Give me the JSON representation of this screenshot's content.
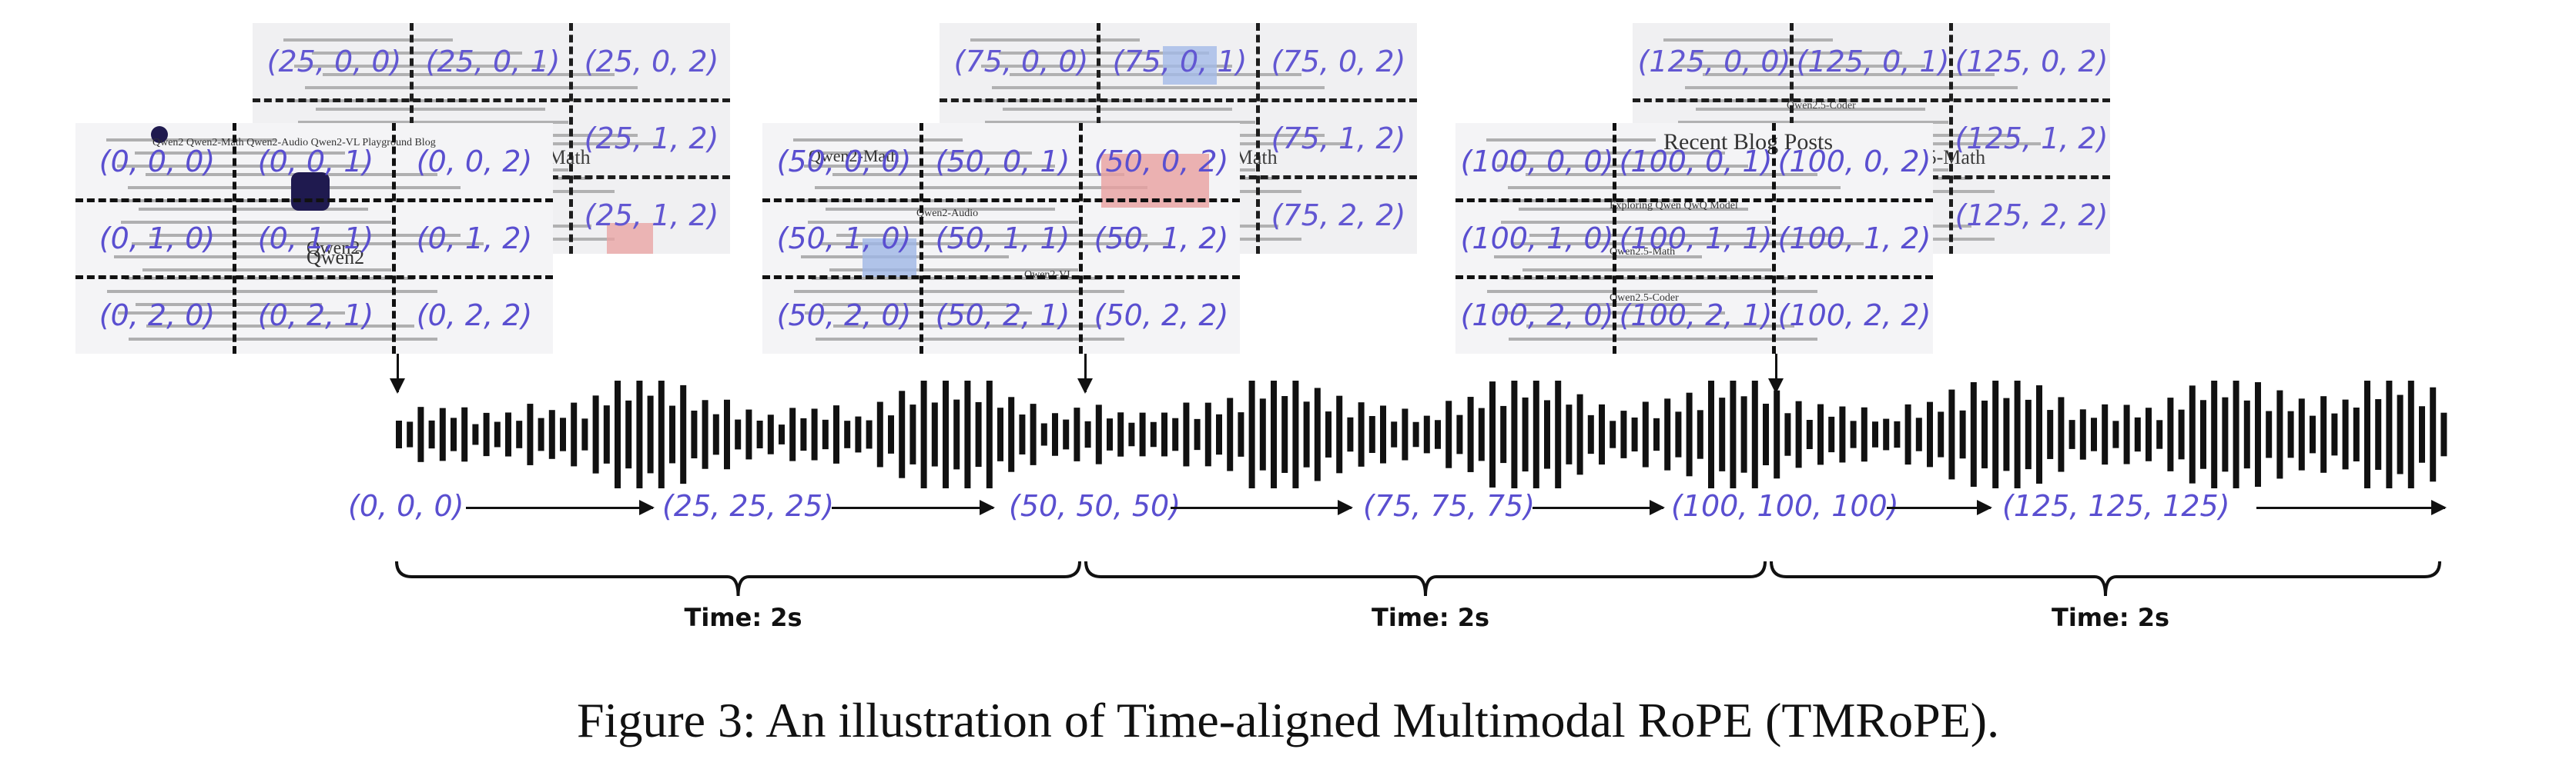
{
  "caption": "Figure 3: An illustration of Time-aligned Multimodal RoPE (TMRoPE).",
  "time_label": "Time: 2s",
  "audio_token_positions": [
    "(0, 0, 0)",
    "(25, 25, 25)",
    "(50, 50, 50)",
    "(75, 75, 75)",
    "(100, 100, 100)",
    "(125, 125, 125)"
  ],
  "video_groups": [
    {
      "front": {
        "cells": [
          "(0, 0, 0)",
          "(0, 0, 1)",
          "(0, 0, 2)",
          "(0, 1, 0)",
          "(0, 1, 1)",
          "(0, 1, 2)",
          "(0, 2, 0)",
          "(0, 2, 1)",
          "(0, 2, 2)"
        ],
        "snippets": [
          "Qwen2",
          "Qwen2   Qwen2-Math   Qwen2-Audio   Qwen2-VL   Playground   Blog",
          "Qwen2"
        ]
      },
      "back": {
        "cells": [
          "(25, 0, 0)",
          "(25, 0, 1)",
          "(25, 0, 2)",
          "",
          "",
          "(25, 1, 2)",
          "",
          "",
          "(25, 1, 2)"
        ],
        "snippets": [
          "Qwen2-Math"
        ]
      }
    },
    {
      "front": {
        "cells": [
          "(50, 0, 0)",
          "(50, 0, 1)",
          "(50, 0, 2)",
          "(50, 1, 0)",
          "(50, 1, 1)",
          "(50, 1, 2)",
          "(50, 2, 0)",
          "(50, 2, 1)",
          "(50, 2, 2)"
        ],
        "snippets": [
          "Qwen2-Math",
          "Qwen2-Audio",
          "Qwen2-VL"
        ]
      },
      "back": {
        "cells": [
          "(75, 0, 0)",
          "(75, 0, 1)",
          "(75, 0, 2)",
          "",
          "",
          "(75, 1, 2)",
          "",
          "",
          "(75, 2, 2)"
        ],
        "snippets": [
          "Qwen2-Math"
        ]
      }
    },
    {
      "front": {
        "cells": [
          "(100, 0, 0)",
          "(100, 0, 1)",
          "(100, 0, 2)",
          "(100, 1, 0)",
          "(100, 1, 1)",
          "(100, 1, 2)",
          "(100, 2, 0)",
          "(100, 2, 1)",
          "(100, 2, 2)"
        ],
        "snippets": [
          "Recent Blog Posts",
          "Exploring Qwen QwQ Model",
          "Qwen2.5-Math",
          "Qwen2.5-Coder"
        ]
      },
      "back": {
        "cells": [
          "(125, 0, 0)",
          "(125, 0, 1)",
          "(125, 0, 2)",
          "",
          "",
          "(125, 1, 2)",
          "",
          "",
          "(125, 2, 2)"
        ],
        "snippets": [
          "Qwen2.5-Math",
          "Qwen2.5-Coder"
        ]
      }
    }
  ]
}
